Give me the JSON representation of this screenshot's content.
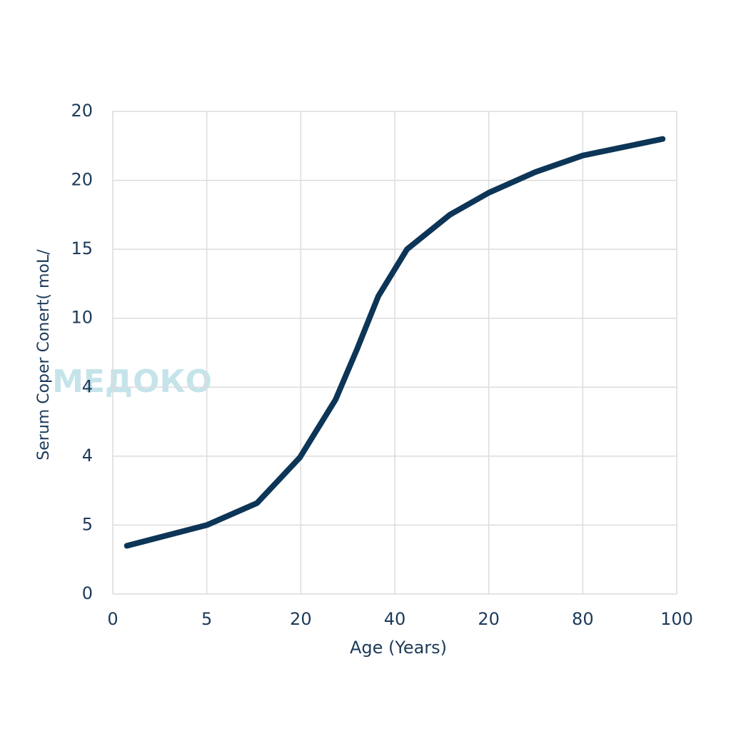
{
  "chart_data": {
    "type": "line",
    "x_label": "Age (Years)",
    "y_label": "Serum Coper Conert( moL/",
    "watermark": "МЕДОКО",
    "x": [
      3,
      20,
      30.7,
      39.8,
      47.4,
      51.9,
      56.5,
      62.6,
      71.7,
      80,
      89.9,
      100,
      117
    ],
    "series": [
      {
        "color": "#0d3557",
        "values": [
          3.5,
          5.0,
          6.6,
          9.9,
          14.1,
          17.7,
          21.6,
          25.0,
          27.5,
          29.1,
          30.6,
          31.8,
          33.0
        ]
      }
    ],
    "xlim": [
      0,
      120
    ],
    "xticks": [
      0,
      {
        "value": 20,
        "label": "5"
      },
      {
        "value": 40,
        "label": "20"
      },
      {
        "value": 60,
        "label": "40"
      },
      {
        "value": 80,
        "label": "20"
      },
      {
        "value": 100,
        "label": "80"
      },
      {
        "value": 120,
        "label": "100"
      }
    ],
    "ylim": [
      0,
      35
    ],
    "yticks": [
      0,
      5,
      {
        "value": 10,
        "label": "4"
      },
      {
        "value": 15,
        "label": "4"
      },
      {
        "value": 20,
        "label": "10"
      },
      {
        "value": 25,
        "label": "15"
      },
      {
        "value": 30,
        "label": "20"
      },
      {
        "value": 35,
        "label": "20"
      }
    ],
    "grid": true
  }
}
